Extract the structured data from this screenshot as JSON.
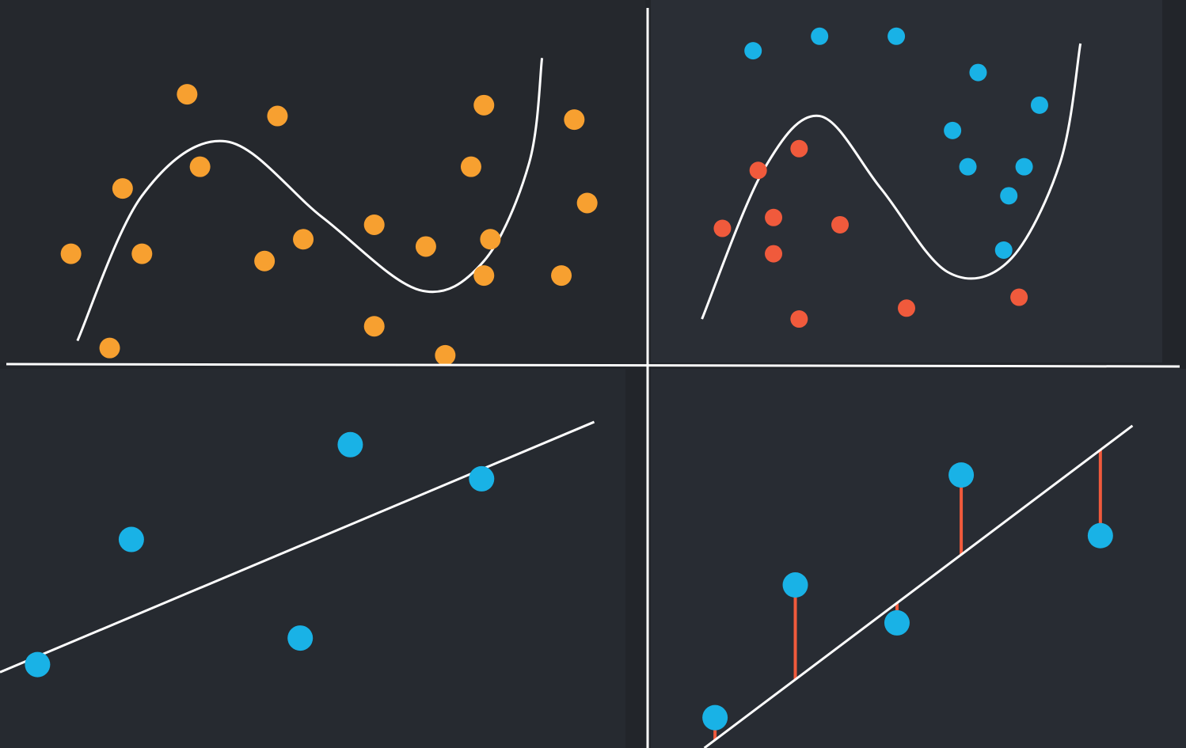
{
  "colors": {
    "background": "#24272c",
    "divider": "#ffffff",
    "curve": "#ffffff",
    "orange_point": "#f7a030",
    "blue_point": "#19b2e6",
    "red_point": "#f05a3c",
    "residual": "#f05a3c"
  },
  "chart_data": [
    {
      "type": "scatter",
      "title": "",
      "xlabel": "",
      "ylabel": "",
      "xlim": [
        0,
        100
      ],
      "ylim": [
        0,
        100
      ],
      "grid": false,
      "legend": "none",
      "series": [
        {
          "color": "orange",
          "points": [
            [
              11,
              30
            ],
            [
              17,
              4
            ],
            [
              19,
              48
            ],
            [
              22,
              30
            ],
            [
              29,
              74
            ],
            [
              31,
              54
            ],
            [
              41,
              28
            ],
            [
              43,
              68
            ],
            [
              47,
              34
            ],
            [
              58,
              38
            ],
            [
              58,
              10
            ],
            [
              66,
              32
            ],
            [
              69,
              2
            ],
            [
              73,
              54
            ],
            [
              75,
              24
            ],
            [
              75,
              71
            ],
            [
              76,
              34
            ],
            [
              87,
              24
            ],
            [
              89,
              67
            ],
            [
              91,
              44
            ]
          ]
        }
      ],
      "curve": {
        "kind": "polynomial-fit",
        "points": [
          [
            12,
            6
          ],
          [
            22,
            46
          ],
          [
            35,
            61
          ],
          [
            50,
            40
          ],
          [
            65,
            20
          ],
          [
            75,
            28
          ],
          [
            82,
            55
          ],
          [
            84,
            84
          ]
        ]
      }
    },
    {
      "type": "scatter",
      "title": "",
      "xlabel": "",
      "ylabel": "",
      "xlim": [
        0,
        100
      ],
      "ylim": [
        0,
        100
      ],
      "grid": false,
      "legend": "none",
      "series": [
        {
          "color": "blue",
          "points": [
            [
              20,
              86
            ],
            [
              33,
              90
            ],
            [
              48,
              90
            ],
            [
              59,
              64
            ],
            [
              62,
              54
            ],
            [
              64,
              80
            ],
            [
              69,
              31
            ],
            [
              70,
              46
            ],
            [
              73,
              54
            ],
            [
              76,
              71
            ]
          ]
        },
        {
          "color": "red",
          "points": [
            [
              14,
              37
            ],
            [
              21,
              53
            ],
            [
              24,
              40
            ],
            [
              24,
              30
            ],
            [
              29,
              59
            ],
            [
              29,
              12
            ],
            [
              37,
              38
            ],
            [
              50,
              15
            ],
            [
              72,
              18
            ]
          ]
        }
      ],
      "curve": {
        "kind": "decision-boundary",
        "points": [
          [
            10,
            12
          ],
          [
            22,
            53
          ],
          [
            33,
            68
          ],
          [
            45,
            48
          ],
          [
            58,
            25
          ],
          [
            70,
            28
          ],
          [
            80,
            55
          ],
          [
            84,
            88
          ]
        ]
      }
    },
    {
      "type": "scatter",
      "title": "",
      "xlabel": "",
      "ylabel": "",
      "xlim": [
        0,
        100
      ],
      "ylim": [
        0,
        100
      ],
      "grid": false,
      "legend": "none",
      "series": [
        {
          "color": "blue",
          "points": [
            [
              6,
              22
            ],
            [
              21,
              55
            ],
            [
              48,
              29
            ],
            [
              56,
              80
            ],
            [
              77,
              71
            ]
          ]
        }
      ],
      "fit_line": [
        [
          0,
          20
        ],
        [
          95,
          86
        ]
      ]
    },
    {
      "type": "scatter",
      "title": "",
      "xlabel": "",
      "ylabel": "",
      "xlim": [
        0,
        100
      ],
      "ylim": [
        0,
        100
      ],
      "grid": false,
      "legend": "none",
      "series": [
        {
          "color": "blue",
          "points": [
            [
              12,
              8
            ],
            [
              27,
              43
            ],
            [
              46,
              33
            ],
            [
              58,
              72
            ],
            [
              84,
              56
            ]
          ]
        }
      ],
      "fit_line": [
        [
          10,
          0
        ],
        [
          90,
          85
        ]
      ],
      "residuals": true
    }
  ]
}
